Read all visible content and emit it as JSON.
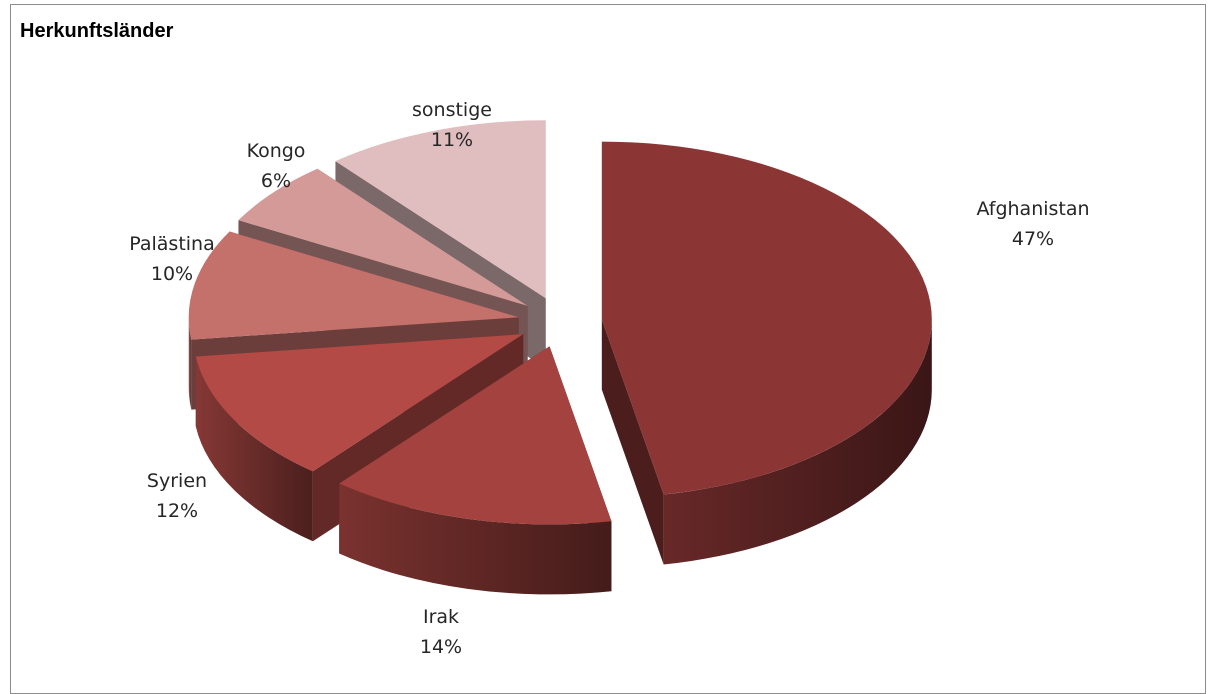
{
  "chart_data": {
    "type": "pie",
    "title": "Herkunftsländer",
    "style": "3d-exploded",
    "slices": [
      {
        "label": "Afghanistan",
        "value": 47,
        "value_label": "47%",
        "color": "#8b3535"
      },
      {
        "label": "Irak",
        "value": 14,
        "value_label": "14%",
        "color": "#a3423e"
      },
      {
        "label": "Syrien",
        "value": 12,
        "value_label": "12%",
        "color": "#b34a46"
      },
      {
        "label": "Palästina",
        "value": 10,
        "value_label": "10%",
        "color": "#c4706b"
      },
      {
        "label": "Kongo",
        "value": 6,
        "value_label": "6%",
        "color": "#d39a97"
      },
      {
        "label": "sonstige",
        "value": 11,
        "value_label": "11%",
        "color": "#e0bdbf"
      }
    ]
  }
}
